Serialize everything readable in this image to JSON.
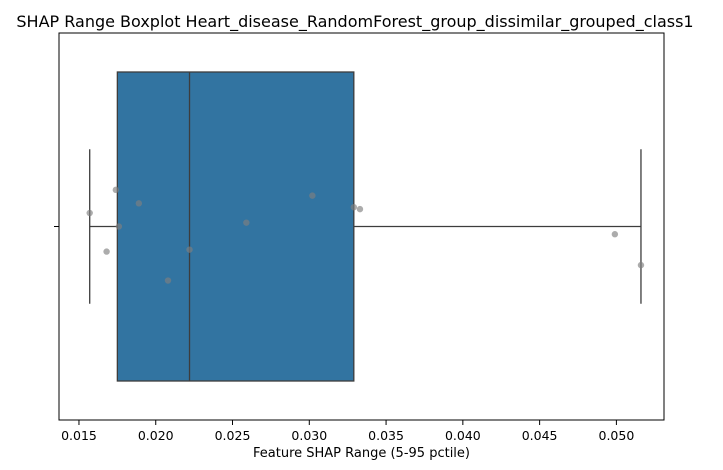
{
  "chart_data": {
    "type": "boxplot",
    "title": "SHAP Range Boxplot Heart_disease_RandomForest_group_dissimilar_grouped_class1",
    "xlabel": "Feature SHAP Range (5-95 pctile)",
    "ylabel": "",
    "xlim": [
      0.0137,
      0.0531
    ],
    "x_ticks": [
      0.015,
      0.02,
      0.025,
      0.03,
      0.035,
      0.04,
      0.045,
      0.05
    ],
    "x_tick_labels": [
      "0.015",
      "0.020",
      "0.025",
      "0.030",
      "0.035",
      "0.040",
      "0.045",
      "0.050"
    ],
    "box": {
      "whisker_low": 0.0157,
      "q1": 0.0175,
      "median": 0.0222,
      "q3": 0.0329,
      "whisker_high": 0.0516,
      "color": "#3274a1",
      "edge_color": "#3d3d3d"
    },
    "points": [
      {
        "x": 0.0157,
        "jitter": 0.07
      },
      {
        "x": 0.0168,
        "jitter": -0.13
      },
      {
        "x": 0.0174,
        "jitter": 0.19
      },
      {
        "x": 0.0176,
        "jitter": 0.0
      },
      {
        "x": 0.0189,
        "jitter": 0.12
      },
      {
        "x": 0.0208,
        "jitter": -0.28
      },
      {
        "x": 0.0222,
        "jitter": -0.12
      },
      {
        "x": 0.0259,
        "jitter": 0.02
      },
      {
        "x": 0.0302,
        "jitter": 0.16
      },
      {
        "x": 0.0329,
        "jitter": 0.1
      },
      {
        "x": 0.0333,
        "jitter": 0.09
      },
      {
        "x": 0.0499,
        "jitter": -0.04
      },
      {
        "x": 0.0516,
        "jitter": -0.2
      }
    ],
    "point_color": "#808080"
  }
}
